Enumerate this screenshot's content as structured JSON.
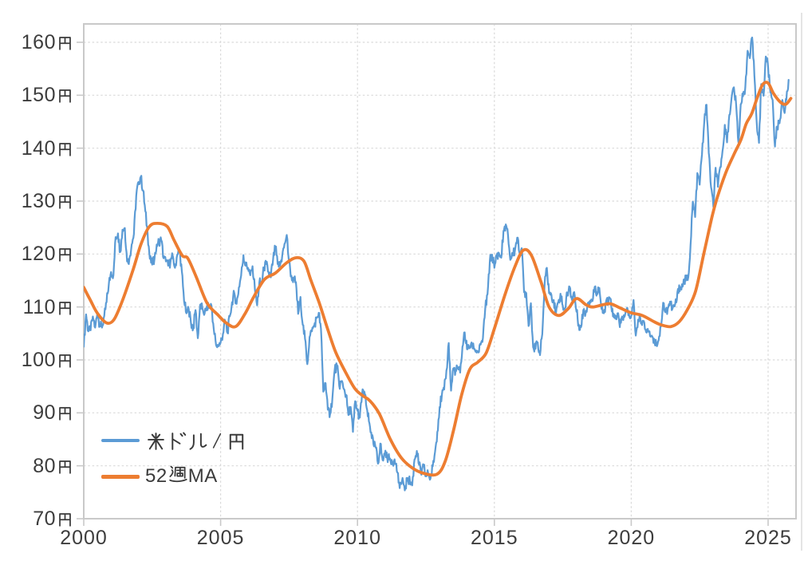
{
  "chart_data": {
    "type": "line",
    "title": "",
    "x_axis": {
      "range": [
        2000,
        2026.05
      ],
      "ticks": [
        2000,
        2005,
        2010,
        2015,
        2020,
        2025
      ],
      "tick_labels": [
        "2000",
        "2005",
        "2010",
        "2015",
        "2020",
        "2025"
      ]
    },
    "y_axis": {
      "unit": "円",
      "range": [
        70,
        163.5
      ],
      "ticks": [
        {
          "v": 70,
          "num": "70",
          "label": "70円"
        },
        {
          "v": 80,
          "num": "80",
          "label": "80円"
        },
        {
          "v": 90,
          "num": "90",
          "label": "90円"
        },
        {
          "v": 100,
          "num": "100",
          "label": "100円"
        },
        {
          "v": 110,
          "num": "110",
          "label": "110円"
        },
        {
          "v": 120,
          "num": "120",
          "label": "120円"
        },
        {
          "v": 130,
          "num": "130",
          "label": "130円"
        },
        {
          "v": 140,
          "num": "140",
          "label": "140円"
        },
        {
          "v": 150,
          "num": "150",
          "label": "150円"
        },
        {
          "v": 160,
          "num": "160",
          "label": "160円"
        }
      ]
    },
    "grid": {
      "horizontal": true,
      "vertical": true,
      "style": "dotted",
      "color": "#d9d9d9"
    },
    "border_color": "#c9c9c9",
    "tick_color": "#c9c9c9",
    "legend": {
      "position": "inside-bottom-left",
      "items": [
        {
          "label": "米ドル/円",
          "color": "#5B9BD5"
        },
        {
          "label": "52週MA",
          "prefix": "52",
          "suffix": "MA",
          "color": "#ED7D31"
        }
      ]
    },
    "series": [
      {
        "name": "米ドル/円",
        "color": "#5B9BD5",
        "width": 2.2,
        "sampling": "monthly",
        "start_year": 2000,
        "start_month": 1,
        "values": [
          102.5,
          108.6,
          105.4,
          105.6,
          108.2,
          106.1,
          108.9,
          106.6,
          106.1,
          108.3,
          110.9,
          114.4,
          116.6,
          116.0,
          123.2,
          123.9,
          120.4,
          124.6,
          124.9,
          118.6,
          119.1,
          121.8,
          123.8,
          131.0,
          133.6,
          134.6,
          132.0,
          128.1,
          123.8,
          119.1,
          118.0,
          119.1,
          121.8,
          122.4,
          122.6,
          119.2,
          118.6,
          117.8,
          118.5,
          119.7,
          117.4,
          119.9,
          120.6,
          116.7,
          111.1,
          108.8,
          109.6,
          107.0,
          105.9,
          109.4,
          104.1,
          110.4,
          109.8,
          108.8,
          110.2,
          110.0,
          110.2,
          105.8,
          102.8,
          102.6,
          103.3,
          104.9,
          107.4,
          105.1,
          108.2,
          110.9,
          112.6,
          110.6,
          113.7,
          115.9,
          119.8,
          117.8,
          117.4,
          116.0,
          117.7,
          113.5,
          110.3,
          114.7,
          114.3,
          117.4,
          118.1,
          116.6,
          115.6,
          119.0,
          121.3,
          118.1,
          117.8,
          119.6,
          121.9,
          123.6,
          118.4,
          115.9,
          115.2,
          114.7,
          108.7,
          111.9,
          106.6,
          104.0,
          99.2,
          104.3,
          105.4,
          106.4,
          107.9,
          108.9,
          105.9,
          94.0,
          95.6,
          90.6,
          89.8,
          92.7,
          98.1,
          98.9,
          95.1,
          96.0,
          94.5,
          93.4,
          89.6,
          91.1,
          86.4,
          92.2,
          90.4,
          89.1,
          93.5,
          94.0,
          91.0,
          88.4,
          86.3,
          84.1,
          83.4,
          80.4,
          84.2,
          81.1,
          82.2,
          81.6,
          81.2,
          81.1,
          80.9,
          80.4,
          76.8,
          76.6,
          77.1,
          75.8,
          77.7,
          77.0,
          76.3,
          81.2,
          82.8,
          80.2,
          78.3,
          79.9,
          78.0,
          78.5,
          77.6,
          79.9,
          82.6,
          86.4,
          91.1,
          93.4,
          94.4,
          98.0,
          103.2,
          94.2,
          98.4,
          97.9,
          98.4,
          97.6,
          102.5,
          105.2,
          102.0,
          102.2,
          103.3,
          102.1,
          101.8,
          101.4,
          102.9,
          104.2,
          109.8,
          112.4,
          118.7,
          119.9,
          117.4,
          119.7,
          120.2,
          119.3,
          124.3,
          125.6,
          123.4,
          118.9,
          120.0,
          120.6,
          123.1,
          120.2,
          121.1,
          112.8,
          112.6,
          106.4,
          110.7,
          102.4,
          102.1,
          103.3,
          100.9,
          104.9,
          114.0,
          117.4,
          112.6,
          112.3,
          111.3,
          108.8,
          110.9,
          112.5,
          110.2,
          109.8,
          112.6,
          113.8,
          111.4,
          112.8,
          109.1,
          106.7,
          106.2,
          109.4,
          108.8,
          110.8,
          111.2,
          111.1,
          113.8,
          112.8,
          113.6,
          109.6,
          108.8,
          111.1,
          110.8,
          111.5,
          108.2,
          107.8,
          108.8,
          106.2,
          108.2,
          108.1,
          109.6,
          108.7,
          108.3,
          111.3,
          104.6,
          107.6,
          107.8,
          107.4,
          105.8,
          105.8,
          105.4,
          104.6,
          104.0,
          103.1,
          103.7,
          106.3,
          110.8,
          109.0,
          109.7,
          111.0,
          109.6,
          110.1,
          111.4,
          114.1,
          113.3,
          115.2,
          115.0,
          115.6,
          121.8,
          129.9,
          127.0,
          135.3,
          133.1,
          138.8,
          144.8,
          148.2,
          139.1,
          132.6,
          128.9,
          136.3,
          132.7,
          136.4,
          139.4,
          144.4,
          141.1,
          146.3,
          149.5,
          151.5,
          148.0,
          141.1,
          148.3,
          149.8,
          151.5,
          158.4,
          157.0,
          160.9,
          153.7,
          144.9,
          141.0,
          152.1,
          149.9,
          157.3,
          155.3,
          150.5,
          149.1,
          140.3,
          144.1,
          144.7,
          148.6,
          147.0,
          149.1,
          152.9
        ]
      },
      {
        "name": "52週MA",
        "color": "#ED7D31",
        "width": 3.8,
        "sampling": "waypoints",
        "points": [
          [
            2000.0,
            113.7
          ],
          [
            2000.25,
            111.2
          ],
          [
            2000.5,
            108.8
          ],
          [
            2000.83,
            107.0
          ],
          [
            2001.1,
            107.6
          ],
          [
            2001.4,
            111.0
          ],
          [
            2001.8,
            117.0
          ],
          [
            2002.1,
            122.0
          ],
          [
            2002.4,
            125.2
          ],
          [
            2002.7,
            125.8
          ],
          [
            2003.05,
            125.2
          ],
          [
            2003.3,
            122.6
          ],
          [
            2003.6,
            119.7
          ],
          [
            2003.8,
            119.2
          ],
          [
            2004.1,
            115.8
          ],
          [
            2004.5,
            110.8
          ],
          [
            2004.9,
            108.5
          ],
          [
            2005.2,
            107.0
          ],
          [
            2005.55,
            106.3
          ],
          [
            2005.9,
            108.8
          ],
          [
            2006.2,
            111.8
          ],
          [
            2006.6,
            115.2
          ],
          [
            2007.0,
            116.4
          ],
          [
            2007.4,
            118.3
          ],
          [
            2007.75,
            119.3
          ],
          [
            2008.05,
            118.6
          ],
          [
            2008.3,
            115.0
          ],
          [
            2008.6,
            110.8
          ],
          [
            2008.9,
            106.0
          ],
          [
            2009.2,
            101.5
          ],
          [
            2009.55,
            97.8
          ],
          [
            2009.9,
            94.6
          ],
          [
            2010.2,
            93.2
          ],
          [
            2010.45,
            92.3
          ],
          [
            2010.8,
            89.8
          ],
          [
            2011.2,
            85.0
          ],
          [
            2011.6,
            81.5
          ],
          [
            2012.0,
            79.6
          ],
          [
            2012.4,
            78.6
          ],
          [
            2012.9,
            78.4
          ],
          [
            2013.2,
            80.8
          ],
          [
            2013.5,
            86.5
          ],
          [
            2013.8,
            93.3
          ],
          [
            2014.1,
            98.2
          ],
          [
            2014.4,
            99.6
          ],
          [
            2014.7,
            101.3
          ],
          [
            2015.0,
            105.9
          ],
          [
            2015.4,
            112.5
          ],
          [
            2015.75,
            117.6
          ],
          [
            2016.05,
            120.7
          ],
          [
            2016.35,
            119.8
          ],
          [
            2016.7,
            114.8
          ],
          [
            2017.0,
            110.0
          ],
          [
            2017.35,
            108.4
          ],
          [
            2017.7,
            109.7
          ],
          [
            2018.0,
            111.6
          ],
          [
            2018.35,
            110.4
          ],
          [
            2018.6,
            110.0
          ],
          [
            2018.95,
            110.4
          ],
          [
            2019.25,
            110.6
          ],
          [
            2019.6,
            109.8
          ],
          [
            2020.0,
            108.9
          ],
          [
            2020.4,
            108.4
          ],
          [
            2020.8,
            107.3
          ],
          [
            2021.1,
            106.6
          ],
          [
            2021.45,
            106.3
          ],
          [
            2021.75,
            107.2
          ],
          [
            2022.05,
            109.5
          ],
          [
            2022.35,
            113.0
          ],
          [
            2022.65,
            120.0
          ],
          [
            2022.95,
            127.0
          ],
          [
            2023.15,
            130.8
          ],
          [
            2023.45,
            135.3
          ],
          [
            2023.75,
            138.8
          ],
          [
            2024.0,
            141.5
          ],
          [
            2024.2,
            144.6
          ],
          [
            2024.4,
            146.5
          ],
          [
            2024.6,
            149.5
          ],
          [
            2024.8,
            152.0
          ],
          [
            2025.0,
            152.3
          ],
          [
            2025.2,
            150.3
          ],
          [
            2025.45,
            148.7
          ],
          [
            2025.65,
            148.3
          ],
          [
            2025.83,
            149.4
          ]
        ]
      }
    ]
  }
}
